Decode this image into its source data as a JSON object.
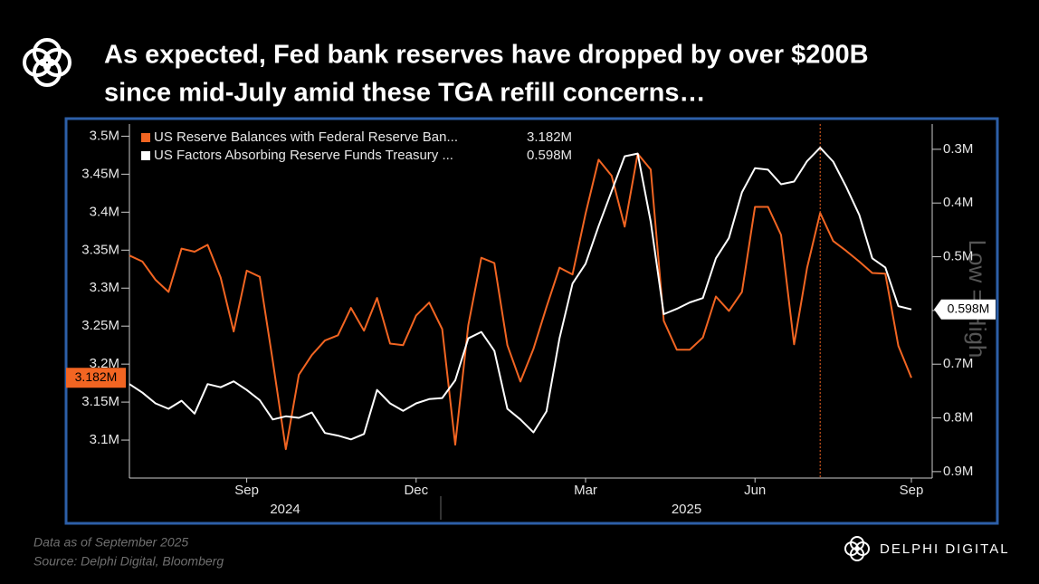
{
  "chart_data": {
    "type": "line",
    "title": [
      "As expected, Fed bank reserves have dropped by over $200B",
      "since mid-July amid these TGA refill concerns…"
    ],
    "categories": [
      null,
      null,
      null,
      null,
      null,
      null,
      null,
      null,
      null,
      "Sep",
      null,
      null,
      null,
      null,
      null,
      null,
      null,
      null,
      null,
      null,
      null,
      null,
      "Dec",
      null,
      null,
      null,
      null,
      null,
      null,
      null,
      null,
      null,
      null,
      null,
      null,
      "Mar",
      null,
      null,
      null,
      null,
      null,
      null,
      null,
      null,
      null,
      null,
      null,
      null,
      "Jun",
      null,
      null,
      null,
      null,
      null,
      null,
      null,
      null,
      null,
      null,
      null,
      "Sep"
    ],
    "x_groups": [
      "2024",
      "2025"
    ],
    "series": [
      {
        "name": "US Reserve Balances with Federal Reserve Ban...",
        "color": "#f26522",
        "axis": "y",
        "values": [
          3.343,
          3.335,
          3.311,
          3.295,
          3.352,
          3.348,
          3.357,
          3.314,
          3.243,
          3.323,
          3.315,
          3.204,
          3.088,
          3.186,
          3.212,
          3.231,
          3.238,
          3.274,
          3.244,
          3.287,
          3.227,
          3.225,
          3.264,
          3.281,
          3.246,
          3.094,
          3.251,
          3.34,
          3.333,
          3.225,
          3.177,
          3.22,
          3.275,
          3.327,
          3.318,
          3.398,
          3.469,
          3.448,
          3.381,
          3.477,
          3.456,
          3.257,
          3.219,
          3.219,
          3.235,
          3.289,
          3.27,
          3.295,
          3.407,
          3.407,
          3.37,
          3.226,
          3.327,
          3.399,
          3.362,
          3.349,
          3.335,
          3.32,
          3.319,
          3.224,
          3.182
        ],
        "value_labels": [
          null,
          null,
          null,
          null,
          null,
          null,
          null,
          null,
          null,
          null,
          null,
          null,
          null,
          null,
          null,
          null,
          null,
          null,
          null,
          null,
          null,
          null,
          null,
          null,
          null,
          null,
          null,
          null,
          null,
          null,
          null,
          null,
          null,
          null,
          null,
          null,
          null,
          null,
          null,
          null,
          null,
          null,
          null,
          null,
          null,
          null,
          null,
          null,
          null,
          null,
          null,
          null,
          null,
          null,
          null,
          null,
          null,
          null,
          null,
          null,
          "3.182M"
        ]
      },
      {
        "name": "US Factors Absorbing Reserve Funds Treasury ...",
        "color": "#ffffff",
        "axis": "y2",
        "values": [
          0.737,
          0.753,
          0.773,
          0.783,
          0.768,
          0.792,
          0.737,
          0.743,
          0.732,
          0.748,
          0.767,
          0.803,
          0.797,
          0.8,
          0.79,
          0.828,
          0.833,
          0.84,
          0.83,
          0.748,
          0.773,
          0.787,
          0.773,
          0.765,
          0.763,
          0.73,
          0.652,
          0.64,
          0.675,
          0.783,
          0.803,
          0.827,
          0.788,
          0.652,
          0.55,
          0.513,
          0.443,
          0.378,
          0.313,
          0.308,
          0.435,
          0.607,
          0.597,
          0.585,
          0.577,
          0.503,
          0.465,
          0.38,
          0.335,
          0.338,
          0.365,
          0.36,
          0.322,
          0.297,
          0.323,
          0.37,
          0.422,
          0.503,
          0.52,
          0.592,
          0.598
        ],
        "value_labels": [
          null,
          null,
          null,
          null,
          null,
          null,
          null,
          null,
          null,
          null,
          null,
          null,
          null,
          null,
          null,
          null,
          null,
          null,
          null,
          null,
          null,
          null,
          null,
          null,
          null,
          null,
          null,
          null,
          null,
          null,
          null,
          null,
          null,
          null,
          null,
          null,
          null,
          null,
          null,
          null,
          null,
          null,
          null,
          null,
          null,
          null,
          null,
          null,
          null,
          null,
          null,
          null,
          null,
          null,
          null,
          null,
          null,
          null,
          null,
          null,
          "0.598M"
        ]
      }
    ],
    "ylim": [
      3.05,
      3.516
    ],
    "yticks": [
      {
        "value": 3.1,
        "label": "3.1M"
      },
      {
        "value": 3.15,
        "label": "3.15M"
      },
      {
        "value": 3.2,
        "label": "3.2M"
      },
      {
        "value": 3.25,
        "label": "3.25M"
      },
      {
        "value": 3.3,
        "label": "3.3M"
      },
      {
        "value": 3.35,
        "label": "3.35M"
      },
      {
        "value": 3.4,
        "label": "3.4M"
      },
      {
        "value": 3.45,
        "label": "3.45M"
      },
      {
        "value": 3.5,
        "label": "3.5M"
      }
    ],
    "y2lim": [
      0.253,
      0.912
    ],
    "y2_inverted": true,
    "y2ticks": [
      {
        "value": 0.3,
        "label": "0.3M"
      },
      {
        "value": 0.4,
        "label": "0.4M"
      },
      {
        "value": 0.5,
        "label": "0.5M"
      },
      {
        "value": 0.6,
        "label": "0.6M"
      },
      {
        "value": 0.7,
        "label": "0.7M"
      },
      {
        "value": 0.8,
        "label": "0.8M"
      },
      {
        "value": 0.9,
        "label": "0.9M"
      }
    ],
    "y2_annotation": "Low = High",
    "vline_index": 53,
    "grid": false
  },
  "footer": {
    "note": "Data as of September  2025",
    "source": "Source:  Delphi Digital, Bloomberg",
    "brand": "DELPHI DIGITAL"
  }
}
